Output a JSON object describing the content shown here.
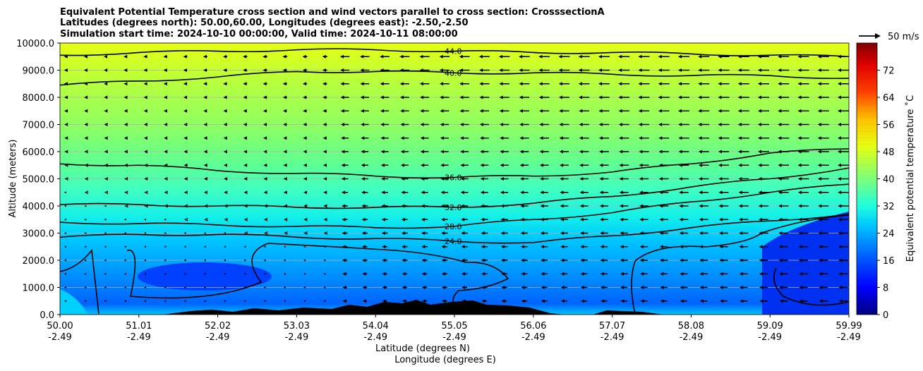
{
  "chart_data": {
    "type": "contour",
    "title_lines": [
      "Equivalent Potential Temperature cross section and wind vectors parallel to cross section: CrosssectionA",
      "Latitudes (degrees north): 50.00,60.00, Longitudes (degrees east): -2.50,-2.50",
      "Simulation start time: 2024-10-10 00:00:00, Valid time: 2024-10-11 08:00:00"
    ],
    "ylabel": "Altitude (meters)",
    "xlabel_1": "Latitude (degrees N)",
    "xlabel_2": "Longitude (degrees E)",
    "ylim": [
      0,
      10000
    ],
    "yticks": [
      "0.0",
      "1000.0",
      "2000.0",
      "3000.0",
      "4000.0",
      "5000.0",
      "6000.0",
      "7000.0",
      "8000.0",
      "9000.0",
      "10000.0"
    ],
    "xticks": [
      {
        "lat": "50.00",
        "lon": "-2.49"
      },
      {
        "lat": "51.01",
        "lon": "-2.49"
      },
      {
        "lat": "52.02",
        "lon": "-2.49"
      },
      {
        "lat": "53.03",
        "lon": "-2.49"
      },
      {
        "lat": "54.04",
        "lon": "-2.49"
      },
      {
        "lat": "55.05",
        "lon": "-2.49"
      },
      {
        "lat": "56.06",
        "lon": "-2.49"
      },
      {
        "lat": "57.07",
        "lon": "-2.49"
      },
      {
        "lat": "58.08",
        "lon": "-2.49"
      },
      {
        "lat": "59.09",
        "lon": "-2.49"
      },
      {
        "lat": "59.99",
        "lon": "-2.49"
      }
    ],
    "grid": true,
    "colorbar": {
      "label": "Equivalent potential temperature ˚C",
      "range": [
        0,
        80
      ],
      "ticks": [
        "0",
        "8",
        "16",
        "24",
        "32",
        "40",
        "48",
        "56",
        "64",
        "72"
      ]
    },
    "wind_key": {
      "label": "50 m/s",
      "speed": 50
    },
    "contour_levels": [
      {
        "value": 44.0,
        "label": "44.0",
        "heights": [
          9550,
          9650,
          9700,
          9750,
          9750,
          9700,
          9650,
          9650,
          9600,
          9550,
          9500
        ]
      },
      {
        "value": 40.0,
        "label": "40.0",
        "heights": [
          8450,
          8600,
          8750,
          8950,
          8950,
          8900,
          8900,
          8850,
          8800,
          8800,
          8700
        ]
      },
      {
        "value": 36.0,
        "label": "36.0",
        "heights": [
          5550,
          5500,
          5300,
          5200,
          5100,
          5050,
          5100,
          5250,
          5550,
          5950,
          6100
        ]
      },
      {
        "value": 32.0,
        "label": "32.0",
        "heights": [
          4050,
          4050,
          4000,
          3950,
          3950,
          3950,
          4100,
          4350,
          4700,
          5000,
          5400
        ]
      },
      {
        "value": 28.0,
        "label": "28.0",
        "heights": [
          3400,
          3350,
          3300,
          3250,
          3200,
          3250,
          3500,
          3750,
          4150,
          4500,
          4800
        ]
      },
      {
        "value": 24.0,
        "label": "24.0",
        "heights": [
          2850,
          2950,
          2950,
          2850,
          2800,
          2700,
          2650,
          2900,
          3200,
          3450,
          3700
        ]
      }
    ],
    "wind_direction": "southward (parallel to section, toward lower latitude)",
    "terrain": "black orography near surface between 51.0 and 57.5 N"
  }
}
